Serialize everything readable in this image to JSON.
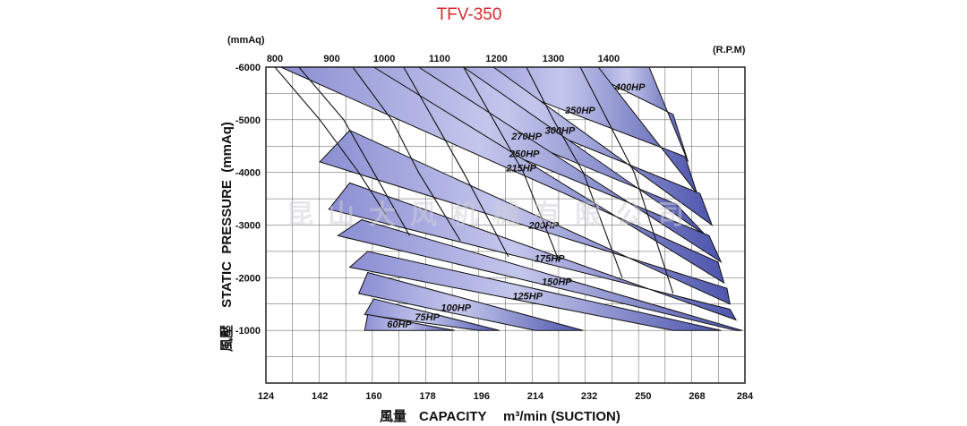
{
  "chart_data": {
    "type": "line",
    "title": "TFV-350",
    "watermark": "昆山大风机械有限公司",
    "xlabel_cn": "風量",
    "xlabel": "CAPACITY",
    "xlabel_unit": "m³/min (SUCTION)",
    "ylabel_cn": "風壓",
    "ylabel": "STATIC  PRESSURE  (mmAq)",
    "y_unit_label": "(mmAq)",
    "rpm_unit_label": "(R.P.M)",
    "xlim": [
      124,
      284
    ],
    "ylim": [
      0,
      -6000
    ],
    "x_ticks": [
      124,
      142,
      160,
      178,
      196,
      214,
      232,
      250,
      268,
      284
    ],
    "y_ticks": [
      -1000,
      -2000,
      -3000,
      -4000,
      -5000,
      -6000
    ],
    "grid": true,
    "rpm_ticks": [
      {
        "label": "800",
        "q_top": 127
      },
      {
        "label": "900",
        "q_top": 146
      },
      {
        "label": "1000",
        "q_top": 163.5
      },
      {
        "label": "1100",
        "q_top": 182
      },
      {
        "label": "1200",
        "q_top": 201
      },
      {
        "label": "1300",
        "q_top": 220
      },
      {
        "label": "1400",
        "q_top": 238.5
      }
    ],
    "rpm_lines": [
      {
        "rpm": 800,
        "points": [
          [
            127,
            -6000
          ],
          [
            142,
            -5000
          ],
          [
            155,
            -4000
          ],
          [
            164,
            -3200
          ]
        ]
      },
      {
        "rpm": 900,
        "points": [
          [
            135,
            -6000
          ],
          [
            150,
            -5000
          ],
          [
            160,
            -4000
          ],
          [
            172,
            -2800
          ]
        ]
      },
      {
        "rpm": 1000,
        "points": [
          [
            153,
            -6000
          ],
          [
            166,
            -5000
          ],
          [
            175,
            -4000
          ],
          [
            189,
            -2700
          ]
        ]
      },
      {
        "rpm": 1100,
        "points": [
          [
            170,
            -6000
          ],
          [
            180,
            -5000
          ],
          [
            190,
            -4000
          ],
          [
            205,
            -2400
          ]
        ]
      },
      {
        "rpm": 1200,
        "points": [
          [
            190,
            -6000
          ],
          [
            200,
            -5000
          ],
          [
            210,
            -4000
          ],
          [
            222,
            -2300
          ]
        ]
      },
      {
        "rpm": 1300,
        "points": [
          [
            211,
            -6000
          ],
          [
            220,
            -5000
          ],
          [
            230,
            -4000
          ],
          [
            243,
            -2000
          ]
        ]
      },
      {
        "rpm": 1400,
        "points": [
          [
            229,
            -6000
          ],
          [
            238,
            -5000
          ],
          [
            247,
            -4000
          ],
          [
            260,
            -1700
          ]
        ]
      }
    ],
    "series": [
      {
        "name": "400HP",
        "lower": [
          [
            228,
            -6000
          ],
          [
            260,
            -5100
          ]
        ],
        "upper": [
          [
            252,
            -6000
          ],
          [
            265,
            -4200
          ]
        ]
      },
      {
        "name": "350HP",
        "lower": [
          [
            186,
            -6000
          ],
          [
            264,
            -4300
          ]
        ],
        "upper": [
          [
            235,
            -6000
          ],
          [
            268,
            -3600
          ]
        ]
      },
      {
        "name": "300HP",
        "lower": [
          [
            165,
            -6000
          ],
          [
            269,
            -3600
          ]
        ],
        "upper": [
          [
            200,
            -6000
          ],
          [
            273,
            -3000
          ]
        ]
      },
      {
        "name": "270HP",
        "lower": [
          [
            150,
            -6000
          ],
          [
            261,
            -3400
          ]
        ],
        "upper": [
          [
            190,
            -6000
          ],
          [
            271,
            -2800
          ]
        ]
      },
      {
        "name": "250HP",
        "lower": [
          [
            135,
            -6000
          ],
          [
            272,
            -2800
          ]
        ],
        "upper": [
          [
            175,
            -6000
          ],
          [
            276,
            -2300
          ]
        ]
      },
      {
        "name": "215HP",
        "lower": [
          [
            129,
            -6000
          ],
          [
            275,
            -2300
          ]
        ],
        "upper": [
          [
            160,
            -6000
          ],
          [
            277,
            -1900
          ]
        ]
      },
      {
        "name": "200HP",
        "lower": [
          [
            142,
            -4200
          ],
          [
            278,
            -1800
          ]
        ],
        "upper": [
          [
            152,
            -4800
          ],
          [
            279,
            -1500
          ]
        ]
      },
      {
        "name": "175HP",
        "lower": [
          [
            145,
            -3300
          ],
          [
            279,
            -1400
          ]
        ],
        "upper": [
          [
            152,
            -3800
          ],
          [
            281,
            -1200
          ]
        ]
      },
      {
        "name": "150HP",
        "lower": [
          [
            148,
            -2800
          ],
          [
            281,
            -1000
          ]
        ],
        "upper": [
          [
            156,
            -3100
          ],
          [
            283,
            -1000
          ]
        ]
      },
      {
        "name": "125HP",
        "lower": [
          [
            152,
            -2200
          ],
          [
            260,
            -1000
          ]
        ],
        "upper": [
          [
            158,
            -2500
          ],
          [
            276,
            -1000
          ]
        ]
      },
      {
        "name": "100HP",
        "lower": [
          [
            155,
            -1700
          ],
          [
            214,
            -1000
          ]
        ],
        "upper": [
          [
            158,
            -2100
          ],
          [
            230,
            -1000
          ]
        ]
      },
      {
        "name": "75HP",
        "lower": [
          [
            157,
            -1300
          ],
          [
            195,
            -1000
          ]
        ],
        "upper": [
          [
            160,
            -1600
          ],
          [
            202,
            -1000
          ]
        ]
      },
      {
        "name": "60HP",
        "lower": [
          [
            157,
            -1000
          ],
          [
            178,
            -1000
          ]
        ],
        "upper": [
          [
            158,
            -1300
          ],
          [
            187,
            -1000
          ]
        ]
      }
    ]
  }
}
